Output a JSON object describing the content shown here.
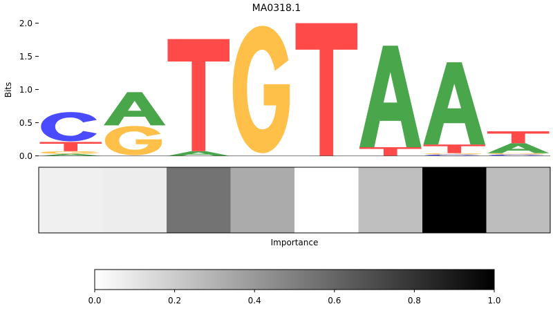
{
  "chart_data": [
    {
      "type": "sequence-logo",
      "title": "MA0318.1",
      "ylabel": "Bits",
      "xlabel": "",
      "ylim": [
        0,
        2.0
      ],
      "yticks": [
        0.0,
        0.5,
        1.0,
        1.5,
        2.0
      ],
      "ytick_labels": [
        "0.0",
        "0.5",
        "1.0",
        "1.5",
        "2.0"
      ],
      "positions": [
        {
          "letters": [
            {
              "base": "A",
              "bits": 0.03
            },
            {
              "base": "G",
              "bits": 0.04
            },
            {
              "base": "T",
              "bits": 0.14
            },
            {
              "base": "C",
              "bits": 0.46
            }
          ]
        },
        {
          "letters": [
            {
              "base": "G",
              "bits": 0.46
            },
            {
              "base": "A",
              "bits": 0.5
            }
          ]
        },
        {
          "letters": [
            {
              "base": "A",
              "bits": 0.07
            },
            {
              "base": "T",
              "bits": 1.69
            }
          ]
        },
        {
          "letters": [
            {
              "base": "G",
              "bits": 2.0
            }
          ]
        },
        {
          "letters": [
            {
              "base": "T",
              "bits": 2.0
            }
          ]
        },
        {
          "letters": [
            {
              "base": "T",
              "bits": 0.13
            },
            {
              "base": "A",
              "bits": 1.53
            }
          ]
        },
        {
          "letters": [
            {
              "base": "C",
              "bits": 0.02
            },
            {
              "base": "G",
              "bits": 0.02
            },
            {
              "base": "T",
              "bits": 0.13
            },
            {
              "base": "A",
              "bits": 1.24
            }
          ]
        },
        {
          "letters": [
            {
              "base": "C",
              "bits": 0.02
            },
            {
              "base": "G",
              "bits": 0.02
            },
            {
              "base": "A",
              "bits": 0.15
            },
            {
              "base": "T",
              "bits": 0.18
            }
          ]
        }
      ]
    },
    {
      "type": "heatmap",
      "xlabel": "Importance",
      "colormap": "grayscale (0 = white, 1 = black)",
      "values": [
        0.06,
        0.07,
        0.55,
        0.33,
        0.0,
        0.25,
        1.0,
        0.26
      ],
      "colorbar": {
        "range": [
          0.0,
          1.0
        ],
        "ticks": [
          0.0,
          0.2,
          0.4,
          0.6,
          0.8,
          1.0
        ],
        "tick_labels": [
          "0.0",
          "0.2",
          "0.4",
          "0.6",
          "0.8",
          "1.0"
        ]
      }
    }
  ],
  "colors": {
    "A": "#4aa64a",
    "C": "#4a4aff",
    "G": "#ffc04a",
    "T": "#ff4a4a"
  }
}
